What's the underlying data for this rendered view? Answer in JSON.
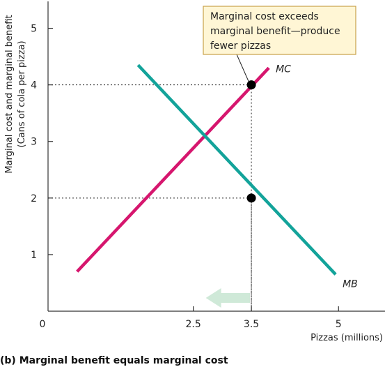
{
  "chart_data": {
    "type": "line",
    "caption": "(b) Marginal benefit equals marginal cost",
    "xlabel": "Pizzas (millions)",
    "ylabel_line1": "Marginal cost and marginal benefit",
    "ylabel_line2": "(Cans of cola per pizza)",
    "xlim": [
      0,
      5.8
    ],
    "ylim": [
      0,
      5.5
    ],
    "x_ticks": [
      {
        "value": 0,
        "label": "0"
      },
      {
        "value": 2.5,
        "label": "2.5"
      },
      {
        "value": 3.5,
        "label": "3.5"
      },
      {
        "value": 5,
        "label": "5"
      }
    ],
    "y_ticks": [
      {
        "value": 1,
        "label": "1"
      },
      {
        "value": 2,
        "label": "2"
      },
      {
        "value": 3,
        "label": "3"
      },
      {
        "value": 4,
        "label": "4"
      },
      {
        "value": 5,
        "label": "5"
      }
    ],
    "series": [
      {
        "name": "MC",
        "color": "#d6166e",
        "x": [
          0.5,
          3.8
        ],
        "y": [
          0.7,
          4.3
        ]
      },
      {
        "name": "MB",
        "color": "#13a39a",
        "x": [
          1.55,
          4.95
        ],
        "y": [
          4.35,
          0.65
        ]
      }
    ],
    "points": [
      {
        "x": 3.5,
        "y": 4
      },
      {
        "x": 3.5,
        "y": 2
      }
    ],
    "guide_lines": [
      {
        "x": 3.5,
        "y": 4
      },
      {
        "x": 3.5,
        "y": 2
      }
    ],
    "arrow": {
      "from_x": 3.5,
      "to_x": 2.5,
      "color": "#cfe9d8"
    },
    "callout": {
      "lines": [
        "Marginal cost exceeds",
        "marginal benefit—produce",
        "fewer pizzas"
      ],
      "fill": "#fff6d5",
      "border": "#c9a24a",
      "target": {
        "x": 3.5,
        "y": 4
      }
    }
  }
}
